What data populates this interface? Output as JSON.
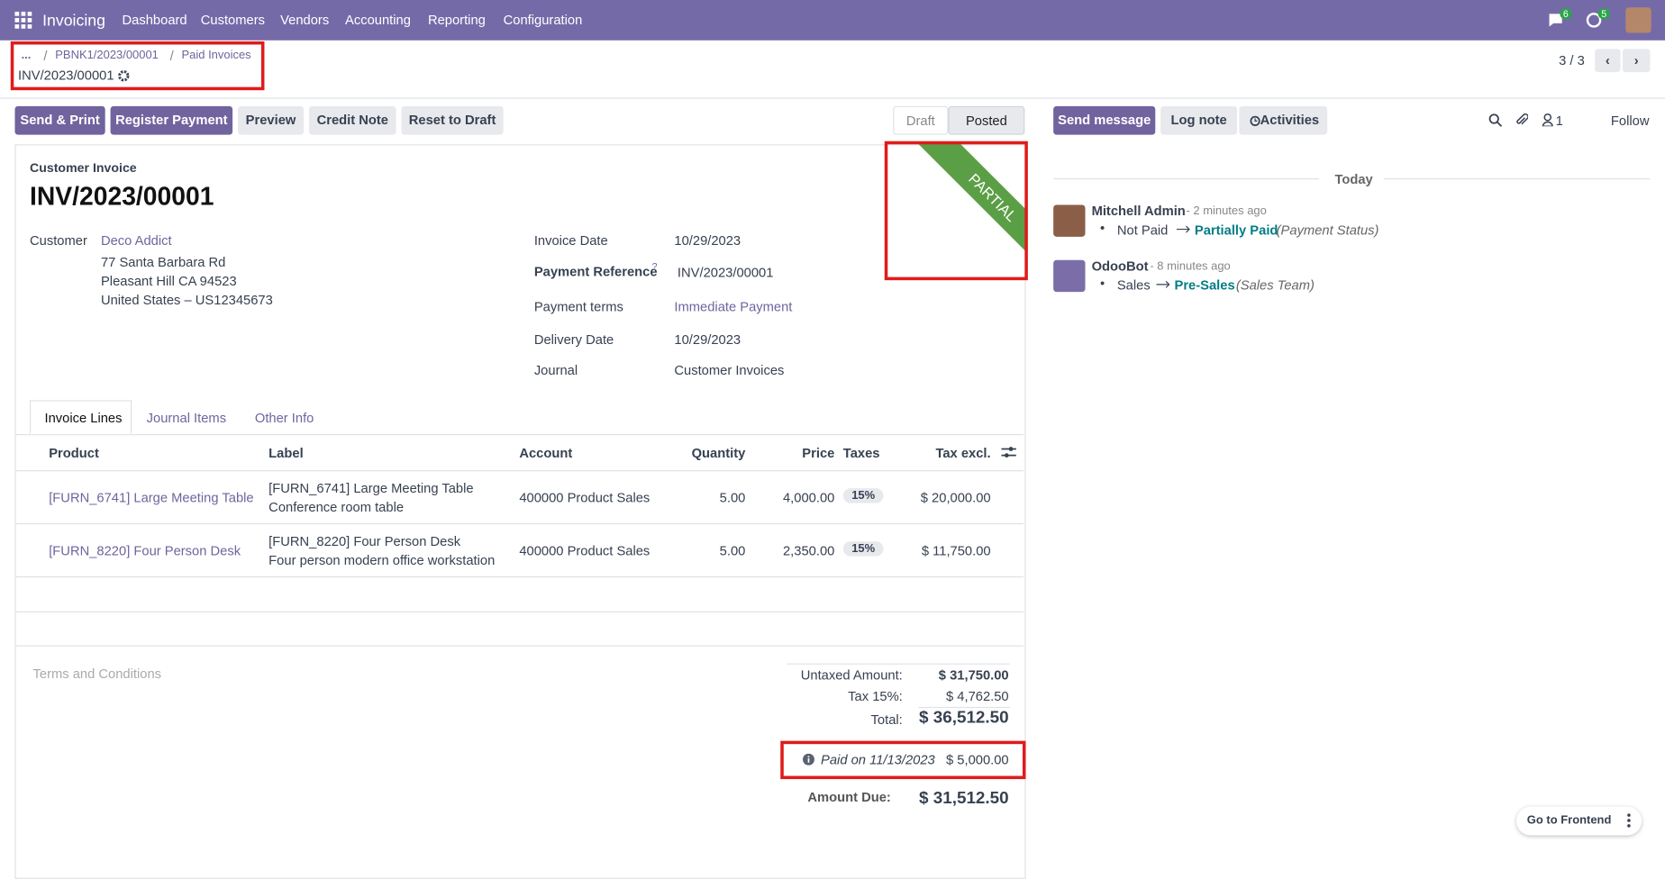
{
  "navbar": {
    "app": "Invoicing",
    "menu": [
      "Dashboard",
      "Customers",
      "Vendors",
      "Accounting",
      "Reporting",
      "Configuration"
    ],
    "badges": [
      "6",
      "5"
    ]
  },
  "breadcrumb": {
    "items": [
      "...",
      "PBNK1/2023/00001",
      "Paid Invoices"
    ],
    "current": "INV/2023/00001",
    "pager": "3 / 3"
  },
  "actions": [
    "Send & Print",
    "Register Payment",
    "Preview",
    "Credit Note",
    "Reset to Draft"
  ],
  "status": [
    "Draft",
    "Posted"
  ],
  "ribbon": "PARTIAL",
  "form": {
    "type": "Customer Invoice",
    "name": "INV/2023/00001",
    "customer_label": "Customer",
    "customer": "Deco Addict",
    "address": [
      "77 Santa Barbara Rd",
      "Pleasant Hill CA 94523",
      "United States – US12345673"
    ],
    "fields": [
      {
        "label": "Invoice Date",
        "value": "10/29/2023"
      },
      {
        "label": "Payment Reference",
        "help": "?",
        "value": "INV/2023/00001"
      },
      {
        "label": "Payment terms",
        "value": "Immediate Payment"
      },
      {
        "label": "Delivery Date",
        "value": "10/29/2023"
      },
      {
        "label": "Journal",
        "value": "Customer Invoices"
      }
    ]
  },
  "tabs": [
    "Invoice Lines",
    "Journal Items",
    "Other Info"
  ],
  "table": {
    "headers": [
      "Product",
      "Label",
      "Account",
      "Quantity",
      "Price",
      "Taxes",
      "Tax excl."
    ],
    "rows": [
      [
        "[FURN_6741] Large Meeting Table",
        [
          "[FURN_6741] Large Meeting Table",
          "Conference room table"
        ],
        "400000 Product Sales",
        "5.00",
        "4,000.00",
        "15%",
        "$ 20,000.00"
      ],
      [
        "[FURN_8220] Four Person Desk",
        [
          "[FURN_8220] Four Person Desk",
          "Four person modern office workstation"
        ],
        "400000 Product Sales",
        "5.00",
        "2,350.00",
        "15%",
        "$ 11,750.00"
      ]
    ]
  },
  "terms": "Terms and Conditions",
  "totals": {
    "untaxed_label": "Untaxed Amount:",
    "untaxed": "$ 31,750.00",
    "tax_label": "Tax 15%:",
    "tax": "$ 4,762.50",
    "total_label": "Total:",
    "total": "$ 36,512.50",
    "paid_label": "Paid on 11/13/2023",
    "paid": "$ 5,000.00",
    "due_label": "Amount Due:",
    "due": "$ 31,512.50"
  },
  "chatter": {
    "buttons": [
      "Send message",
      "Log note",
      "Activities"
    ],
    "followers": "1",
    "follow": "Follow",
    "date": "Today",
    "messages": [
      {
        "author": "Mitchell Admin",
        "time": "- 2 minutes ago",
        "old": "Not Paid",
        "new": "Partially Paid",
        "field": "(Payment Status)"
      },
      {
        "author": "OdooBot",
        "time": "- 8 minutes ago",
        "old": "Sales",
        "new": "Pre-Sales",
        "field": "(Sales Team)"
      }
    ]
  },
  "frontend": "Go to Frontend"
}
